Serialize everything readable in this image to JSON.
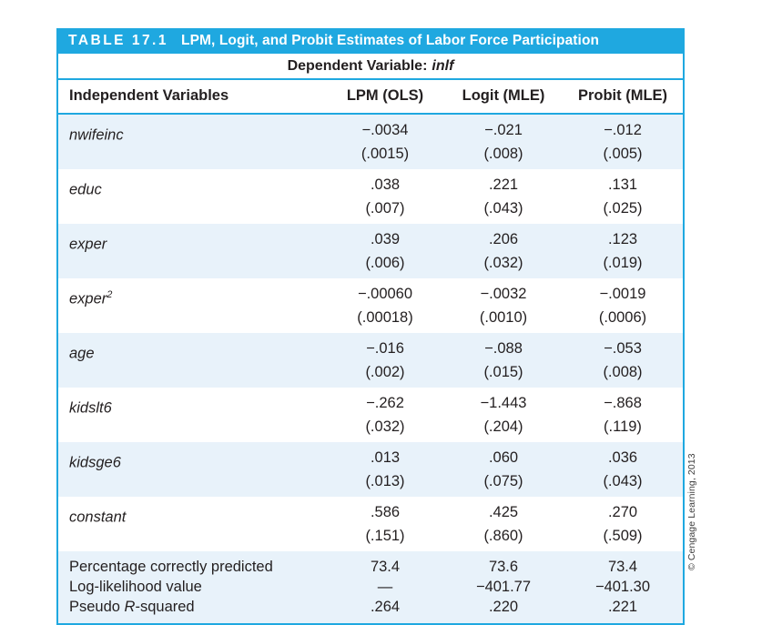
{
  "table": {
    "number": "TABLE 17.1",
    "title": "LPM, Logit, and Probit Estimates of Labor Force Participation",
    "dependent_variable_label": "Dependent Variable:",
    "dependent_variable_name": "inlf",
    "columns": {
      "variables": "Independent Variables",
      "lpm": "LPM (OLS)",
      "logit": "Logit (MLE)",
      "probit": "Probit (MLE)"
    },
    "rows": [
      {
        "variable": "nwifeinc",
        "sup": "",
        "lpm": "−.0034",
        "lpm_se": "(.0015)",
        "logit": "−.021",
        "logit_se": "(.008)",
        "probit": "−.012",
        "probit_se": "(.005)"
      },
      {
        "variable": "educ",
        "sup": "",
        "lpm": ".038",
        "lpm_se": "(.007)",
        "logit": ".221",
        "logit_se": "(.043)",
        "probit": ".131",
        "probit_se": "(.025)"
      },
      {
        "variable": "exper",
        "sup": "",
        "lpm": ".039",
        "lpm_se": "(.006)",
        "logit": ".206",
        "logit_se": "(.032)",
        "probit": ".123",
        "probit_se": "(.019)"
      },
      {
        "variable": "exper",
        "sup": "2",
        "lpm": "−.00060",
        "lpm_se": "(.00018)",
        "logit": "−.0032",
        "logit_se": "(.0010)",
        "probit": "−.0019",
        "probit_se": "(.0006)"
      },
      {
        "variable": "age",
        "sup": "",
        "lpm": "−.016",
        "lpm_se": "(.002)",
        "logit": "−.088",
        "logit_se": "(.015)",
        "probit": "−.053",
        "probit_se": "(.008)"
      },
      {
        "variable": "kidslt6",
        "sup": "",
        "lpm": "−.262",
        "lpm_se": "(.032)",
        "logit": "−1.443",
        "logit_se": "(.204)",
        "probit": "−.868",
        "probit_se": "(.119)"
      },
      {
        "variable": "kidsge6",
        "sup": "",
        "lpm": ".013",
        "lpm_se": "(.013)",
        "logit": ".060",
        "logit_se": "(.075)",
        "probit": ".036",
        "probit_se": "(.043)"
      },
      {
        "variable": "constant",
        "sup": "",
        "lpm": ".586",
        "lpm_se": "(.151)",
        "logit": ".425",
        "logit_se": "(.860)",
        "probit": ".270",
        "probit_se": "(.509)"
      }
    ],
    "summary": [
      {
        "label_pre": "Percentage correctly predicted",
        "label_it": "",
        "label_post": "",
        "lpm": "73.4",
        "logit": "73.6",
        "probit": "73.4"
      },
      {
        "label_pre": "Log-likelihood value",
        "label_it": "",
        "label_post": "",
        "lpm": "—",
        "logit": "−401.77",
        "probit": "−401.30"
      },
      {
        "label_pre": "Pseudo ",
        "label_it": "R",
        "label_post": "-squared",
        "lpm": ".264",
        "logit": ".220",
        "probit": ".221"
      }
    ],
    "copyright": "© Cengage Learning, 2013"
  },
  "colors": {
    "header_cyan": "#1fa8e0",
    "row_band_blue": "#e8f2fa",
    "text": "#231f20"
  }
}
